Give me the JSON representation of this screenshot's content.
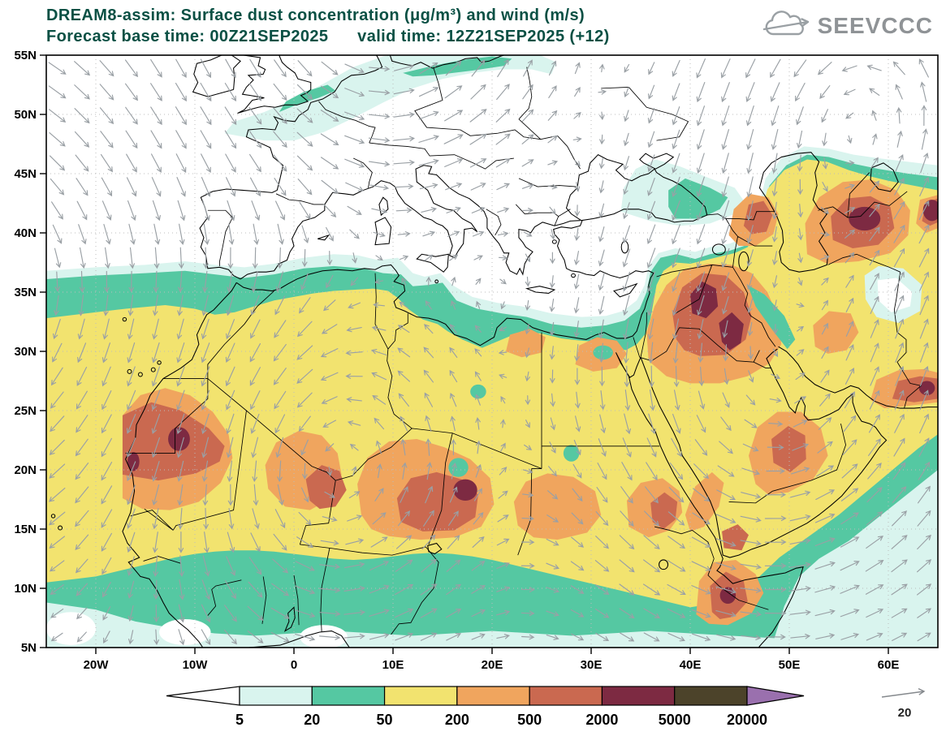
{
  "page": {
    "background": "#ffffff"
  },
  "header": {
    "title_line1": "DREAM8-assim: Surface dust concentration (μg/m³) and wind (m/s)",
    "title_line2": "Forecast base time: 00Z21SEP2025      valid time: 12Z21SEP2025 (+12)",
    "logo_text": "SEEVCCC"
  },
  "colors": {
    "title": "#0a5044",
    "logo": "#8f9396",
    "frame": "#000000",
    "coastline": "#000000",
    "grid_dots": "#bcbcbc",
    "wind_arrow": "#9aa0a5"
  },
  "chart_data": {
    "type": "heatmap",
    "title": "DREAM8-assim: Surface dust concentration (μg/m³) and wind (m/s)",
    "model": "DREAM8-assim",
    "variable": "Surface dust concentration",
    "units": "μg/m³",
    "wind_units": "m/s",
    "forecast_base_time": "00Z21SEP2025",
    "valid_time": "12Z21SEP2025",
    "lead": "+12",
    "projection": "equirectangular lat-lon",
    "lon_range": [
      -25,
      65
    ],
    "lat_range": [
      5,
      55
    ],
    "lat_ticks": [
      {
        "label": "55N",
        "value": 55
      },
      {
        "label": "50N",
        "value": 50
      },
      {
        "label": "45N",
        "value": 45
      },
      {
        "label": "40N",
        "value": 40
      },
      {
        "label": "35N",
        "value": 35
      },
      {
        "label": "30N",
        "value": 30
      },
      {
        "label": "25N",
        "value": 25
      },
      {
        "label": "20N",
        "value": 20
      },
      {
        "label": "15N",
        "value": 15
      },
      {
        "label": "10N",
        "value": 10
      },
      {
        "label": "5N",
        "value": 5
      }
    ],
    "lon_ticks": [
      {
        "label": "20W",
        "value": -20
      },
      {
        "label": "10W",
        "value": -10
      },
      {
        "label": "0",
        "value": 0
      },
      {
        "label": "10E",
        "value": 10
      },
      {
        "label": "20E",
        "value": 20
      },
      {
        "label": "30E",
        "value": 30
      },
      {
        "label": "40E",
        "value": 40
      },
      {
        "label": "50E",
        "value": 50
      },
      {
        "label": "60E",
        "value": 60
      }
    ],
    "grid": {
      "lat_lines": [
        50,
        45,
        40,
        35,
        30,
        25,
        20,
        15,
        10
      ],
      "lon_lines": [
        -20,
        -10,
        0,
        10,
        20,
        30,
        40,
        50,
        60
      ],
      "style": "dotted"
    },
    "colorbar": {
      "unit": "μg/m³",
      "levels": [
        5,
        20,
        50,
        200,
        500,
        2000,
        5000,
        20000
      ],
      "labels": [
        "5",
        "20",
        "50",
        "200",
        "500",
        "2000",
        "5000",
        "20000"
      ],
      "colors": {
        "below": "#ffffff",
        "boxes": [
          "#d9f4ee",
          "#55c8a2",
          "#f2e36f",
          "#f0a55e",
          "#ca6950",
          "#7d2a42",
          "#4c432a"
        ],
        "above": "#9a70ae"
      }
    },
    "wind_reference": {
      "label": "20",
      "value": 20
    },
    "background_field": "50-200 μg/m³ over most of the Sahara, Arabian Peninsula and Middle East; 5-50 μg/m³ fringes over Sahel, NW Africa coast, Mediterranean, NW Europe, Black Sea / Caucasus and Caspian margins; clean air (<5) over most of Europe and N Atlantic",
    "hotspots": [
      {
        "region": "Mauritania / Western Sahara coast",
        "lon": -11,
        "lat": 22.8,
        "peak_level": "2000-5000"
      },
      {
        "region": "Bodele depression, Chad",
        "lon": 17.3,
        "lat": 18.3,
        "peak_level": "2000-5000"
      },
      {
        "region": "Iraq / Syria (Mesopotamia)",
        "lon": 42,
        "lat": 34,
        "peak_level": "2000-5000"
      },
      {
        "region": "Karakum / Kyzylkum (Turkmenistan-Uzbekistan)",
        "lon": 57.5,
        "lat": 41.2,
        "peak_level": "2000-5000"
      },
      {
        "region": "Horn of Africa (Djibouti / Somaliland)",
        "lon": 43.8,
        "lat": 9.4,
        "peak_level": "2000-5000"
      },
      {
        "region": "Sudan Red Sea coast",
        "lon": 37.3,
        "lat": 16.4,
        "peak_level": "500-2000"
      },
      {
        "region": "Makran coast (far east of domain)",
        "lon": 63,
        "lat": 27,
        "peak_level": "500-2000"
      },
      {
        "region": "Caucasus / Azerbaijan",
        "lon": 46.8,
        "lat": 41.5,
        "peak_level": "500-2000"
      },
      {
        "region": "Central Sahara (Mali / Algeria / Niger)",
        "lon": 3.5,
        "lat": 18.5,
        "peak_level": "500-2000"
      },
      {
        "region": "Rub al Khali, Saudi Arabia",
        "lon": 50,
        "lat": 21.5,
        "peak_level": "500-2000"
      }
    ]
  }
}
